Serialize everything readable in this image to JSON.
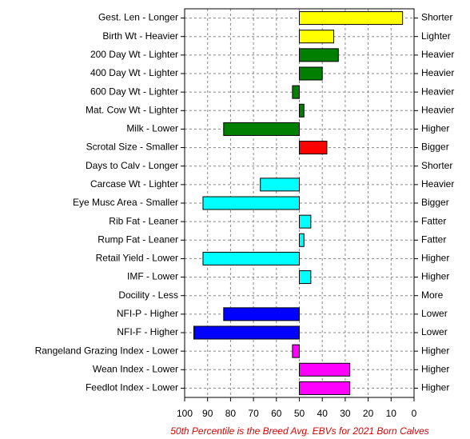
{
  "chart_data": {
    "type": "bar",
    "orientation": "horizontal",
    "categories": [
      "Gest. Len - Longer",
      "Birth Wt - Heavier",
      "200 Day Wt - Lighter",
      "400 Day Wt - Lighter",
      "600 Day Wt - Lighter",
      "Mat. Cow Wt - Lighter",
      "Milk - Lower",
      "Scrotal Size - Smaller",
      "Days to Calv - Longer",
      "Carcase Wt - Lighter",
      "Eye Musc Area - Smaller",
      "Rib Fat - Leaner",
      "Rump Fat - Leaner",
      "Retail Yield - Lower",
      "IMF - Lower",
      "Docility - Less",
      "NFI-P - Higher",
      "NFI-F - Higher",
      "Rangeland Grazing Index - Lower",
      "Wean Index - Lower",
      "Feedlot Index - Lower"
    ],
    "right_labels": [
      "Shorter",
      "Lighter",
      "Heavier",
      "Heavier",
      "Heavier",
      "Heavier",
      "Higher",
      "Bigger",
      "Shorter",
      "Heavier",
      "Bigger",
      "Fatter",
      "Fatter",
      "Higher",
      "Higher",
      "More",
      "Lower",
      "Lower",
      "Higher",
      "Higher",
      "Higher"
    ],
    "values": [
      5,
      35,
      33,
      40,
      53,
      48,
      83,
      38,
      50,
      67,
      92,
      45,
      48,
      92,
      45,
      50,
      83,
      96,
      53,
      28,
      28
    ],
    "colors": [
      "#ffff00",
      "#ffff00",
      "#007f00",
      "#007f00",
      "#007f00",
      "#007f00",
      "#007f00",
      "#ff0000",
      "#00ffff",
      "#00ffff",
      "#00ffff",
      "#00ffff",
      "#00ffff",
      "#00ffff",
      "#00ffff",
      "#0000ff",
      "#0000ff",
      "#0000ff",
      "#ff00ff",
      "#ff00ff",
      "#ff00ff"
    ],
    "base": 50,
    "xlim": [
      100,
      0
    ],
    "xticks": [
      100,
      90,
      80,
      70,
      60,
      50,
      40,
      30,
      20,
      10,
      0
    ],
    "grid": true,
    "footnote": "50th Percentile is the Breed Avg. EBVs for 2021 Born Calves"
  }
}
